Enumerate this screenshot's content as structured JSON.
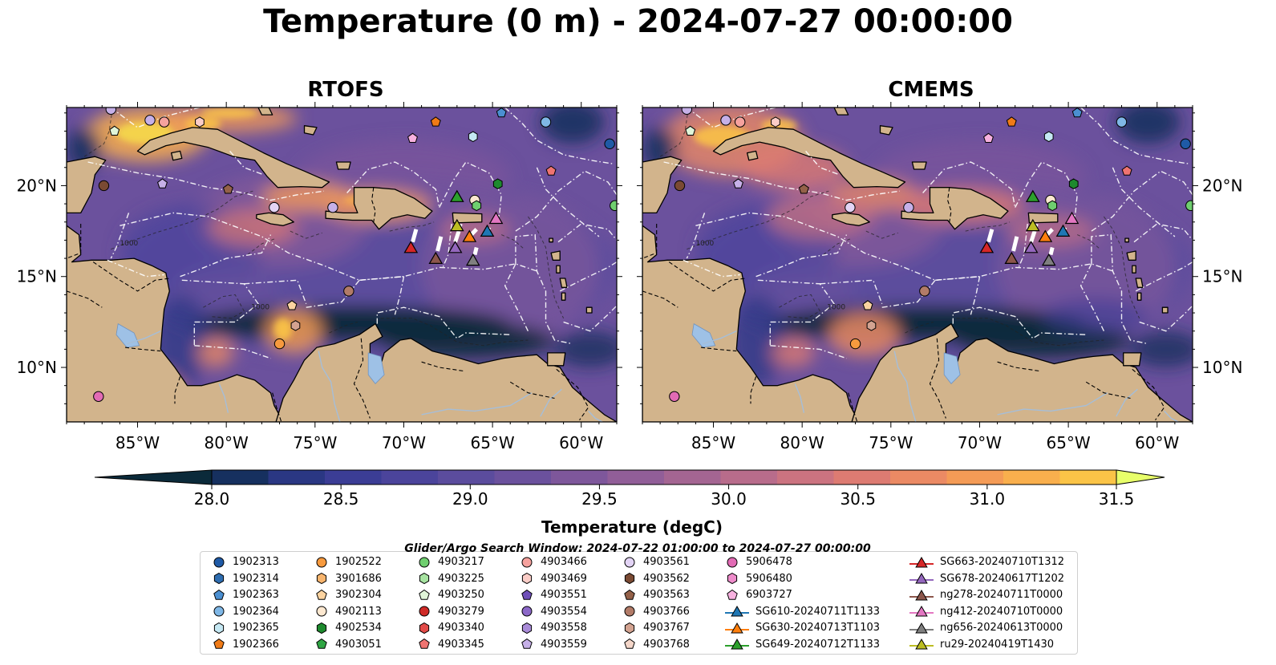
{
  "title": "Temperature (0 m) - 2024-07-27 00:00:00",
  "search_window": "Glider/Argo Search Window: 2024-07-22 01:00:00 to 2024-07-27 00:00:00",
  "chart_data": {
    "type": "heatmap",
    "panels": [
      {
        "title": "RTOFS"
      },
      {
        "title": "CMEMS"
      }
    ],
    "x_ticks": [
      "85°W",
      "80°W",
      "75°W",
      "70°W",
      "65°W",
      "60°W"
    ],
    "x_tick_values": [
      -85,
      -80,
      -75,
      -70,
      -65,
      -60
    ],
    "y_ticks": [
      "20°N",
      "15°N",
      "10°N"
    ],
    "y_tick_values": [
      20,
      15,
      10
    ],
    "xlim": [
      -89,
      -58
    ],
    "ylim": [
      7,
      24.3
    ],
    "colorbar": {
      "label": "Temperature (degC)",
      "range": [
        28.0,
        31.5
      ],
      "ticks": [
        "28.0",
        "28.5",
        "29.0",
        "29.5",
        "30.0",
        "30.5",
        "31.0",
        "31.5"
      ],
      "colors": [
        "#0b2a3a",
        "#16305f",
        "#2a3783",
        "#3b3d95",
        "#4b449b",
        "#5b4c9d",
        "#6b519d",
        "#7e579b",
        "#915e98",
        "#a46592",
        "#b86c8b",
        "#cb7380",
        "#dd7b72",
        "#eb8a64",
        "#f49b56",
        "#f9af4d",
        "#fbc447",
        "#f5d84b"
      ],
      "extend": "both"
    },
    "contour_label": "1000",
    "legend": [
      {
        "label": "1902313",
        "marker": "circle",
        "color": "#1f5aa6"
      },
      {
        "label": "1902314",
        "marker": "hexagon",
        "color": "#2e6db0"
      },
      {
        "label": "1902363",
        "marker": "pentagon",
        "color": "#4b8fd1"
      },
      {
        "label": "1902364",
        "marker": "circle",
        "color": "#7fb7e6"
      },
      {
        "label": "1902365",
        "marker": "hexagon",
        "color": "#c5e8f3"
      },
      {
        "label": "1902366",
        "marker": "pentagon",
        "color": "#f07b17"
      },
      {
        "label": "1902522",
        "marker": "circle",
        "color": "#f79a3e"
      },
      {
        "label": "3901686",
        "marker": "hexagon",
        "color": "#f8b56e"
      },
      {
        "label": "3902304",
        "marker": "pentagon",
        "color": "#fbd3a0"
      },
      {
        "label": "4902113",
        "marker": "circle",
        "color": "#fde8d0"
      },
      {
        "label": "4902534",
        "marker": "hexagon",
        "color": "#1e8a2e"
      },
      {
        "label": "4903051",
        "marker": "pentagon",
        "color": "#2fa543"
      },
      {
        "label": "4903217",
        "marker": "circle",
        "color": "#6fcf6f"
      },
      {
        "label": "4903225",
        "marker": "hexagon",
        "color": "#a7e3a1"
      },
      {
        "label": "4903250",
        "marker": "pentagon",
        "color": "#e0f5d8"
      },
      {
        "label": "4903279",
        "marker": "circle",
        "color": "#cf2a27"
      },
      {
        "label": "4903340",
        "marker": "hexagon",
        "color": "#e24b48"
      },
      {
        "label": "4903345",
        "marker": "pentagon",
        "color": "#ef7471"
      },
      {
        "label": "4903466",
        "marker": "circle",
        "color": "#f6a29e"
      },
      {
        "label": "4903469",
        "marker": "hexagon",
        "color": "#fbcdc7"
      },
      {
        "label": "4903551",
        "marker": "pentagon",
        "color": "#6f4fb8"
      },
      {
        "label": "4903554",
        "marker": "circle",
        "color": "#8c68c8"
      },
      {
        "label": "4903558",
        "marker": "hexagon",
        "color": "#a98bd8"
      },
      {
        "label": "4903559",
        "marker": "pentagon",
        "color": "#c6b0e8"
      },
      {
        "label": "4903561",
        "marker": "circle",
        "color": "#e3d4f5"
      },
      {
        "label": "4903562",
        "marker": "hexagon",
        "color": "#7a4a33"
      },
      {
        "label": "4903563",
        "marker": "pentagon",
        "color": "#946149"
      },
      {
        "label": "4903766",
        "marker": "circle",
        "color": "#b27b68"
      },
      {
        "label": "4903767",
        "marker": "hexagon",
        "color": "#d3a391"
      },
      {
        "label": "4903768",
        "marker": "pentagon",
        "color": "#f4d6c9"
      },
      {
        "label": "5906478",
        "marker": "circle",
        "color": "#e26bb5"
      },
      {
        "label": "5906480",
        "marker": "hexagon",
        "color": "#ee8ccb"
      },
      {
        "label": "6903727",
        "marker": "pentagon",
        "color": "#f7b1df"
      },
      {
        "label": "SG610-20240711T1133",
        "marker": "triangle-line",
        "color": "#1f77b4"
      },
      {
        "label": "SG630-20240713T1103",
        "marker": "triangle-line",
        "color": "#ff7f0e"
      },
      {
        "label": "SG649-20240712T1133",
        "marker": "triangle-line",
        "color": "#2ca02c"
      },
      {
        "label": "SG663-20240710T1312",
        "marker": "triangle-line",
        "color": "#d62728"
      },
      {
        "label": "SG678-20240617T1202",
        "marker": "triangle-line",
        "color": "#9467bd"
      },
      {
        "label": "ng278-20240711T0000",
        "marker": "triangle-line",
        "color": "#8c564b"
      },
      {
        "label": "ng412-20240710T0000",
        "marker": "triangle-line",
        "color": "#e377c2"
      },
      {
        "label": "ng656-20240613T0000",
        "marker": "triangle-line",
        "color": "#7f7f7f"
      },
      {
        "label": "ru29-20240419T1430",
        "marker": "triangle-line",
        "color": "#bcbd22"
      }
    ],
    "floats": [
      {
        "lon": -86.5,
        "lat": 24.2,
        "marker": "circle",
        "color": "#c6b0e8"
      },
      {
        "lon": -86.3,
        "lat": 23.0,
        "marker": "pentagon",
        "color": "#e0f5d8"
      },
      {
        "lon": -84.3,
        "lat": 23.6,
        "marker": "circle",
        "color": "#c6b0e8"
      },
      {
        "lon": -83.5,
        "lat": 23.5,
        "marker": "circle",
        "color": "#f6a29e"
      },
      {
        "lon": -81.5,
        "lat": 23.5,
        "marker": "hexagon",
        "color": "#fbcdc7"
      },
      {
        "lon": -86.9,
        "lat": 20.0,
        "marker": "circle",
        "color": "#7a4a33"
      },
      {
        "lon": -83.6,
        "lat": 20.1,
        "marker": "pentagon",
        "color": "#c6b0e8"
      },
      {
        "lon": -79.9,
        "lat": 19.8,
        "marker": "pentagon",
        "color": "#946149"
      },
      {
        "lon": -77.3,
        "lat": 18.8,
        "marker": "circle",
        "color": "#e3d4f5"
      },
      {
        "lon": -74.0,
        "lat": 18.8,
        "marker": "circle",
        "color": "#c6b0e8"
      },
      {
        "lon": -69.5,
        "lat": 22.6,
        "marker": "pentagon",
        "color": "#f7b1df"
      },
      {
        "lon": -68.2,
        "lat": 23.5,
        "marker": "pentagon",
        "color": "#f07b17"
      },
      {
        "lon": -66.1,
        "lat": 22.7,
        "marker": "hexagon",
        "color": "#c5e8f3"
      },
      {
        "lon": -64.5,
        "lat": 24.0,
        "marker": "pentagon",
        "color": "#4b8fd1"
      },
      {
        "lon": -62.0,
        "lat": 23.5,
        "marker": "circle",
        "color": "#7fb7e6"
      },
      {
        "lon": -58.4,
        "lat": 22.3,
        "marker": "circle",
        "color": "#1f5aa6"
      },
      {
        "lon": -61.7,
        "lat": 20.8,
        "marker": "pentagon",
        "color": "#ef7471"
      },
      {
        "lon": -64.7,
        "lat": 20.1,
        "marker": "hexagon",
        "color": "#1e8a2e"
      },
      {
        "lon": -66.0,
        "lat": 19.2,
        "marker": "circle",
        "color": "#fde8d0"
      },
      {
        "lon": -65.9,
        "lat": 18.9,
        "marker": "hexagon",
        "color": "#6fcf6f"
      },
      {
        "lon": -58.1,
        "lat": 18.9,
        "marker": "circle",
        "color": "#6fcf6f"
      },
      {
        "lon": -73.1,
        "lat": 14.2,
        "marker": "circle",
        "color": "#b27b68"
      },
      {
        "lon": -76.3,
        "lat": 13.4,
        "marker": "pentagon",
        "color": "#fbd3a0"
      },
      {
        "lon": -76.1,
        "lat": 12.3,
        "marker": "hexagon",
        "color": "#d3a391"
      },
      {
        "lon": -77.0,
        "lat": 11.3,
        "marker": "circle",
        "color": "#f79a3e"
      },
      {
        "lon": -87.2,
        "lat": 8.4,
        "marker": "circle",
        "color": "#e26bb5"
      }
    ],
    "gliders": [
      {
        "label": "SG663-20240710T1312",
        "lon": -69.6,
        "lat": 16.6,
        "color": "#d62728",
        "track": [
          [
            -69.3,
            17.6
          ],
          [
            -69.5,
            16.9
          ]
        ]
      },
      {
        "label": "ng278-20240711T0000",
        "lon": -68.2,
        "lat": 16.0,
        "color": "#8c564b",
        "track": [
          [
            -67.9,
            17.2
          ],
          [
            -68.1,
            16.4
          ]
        ]
      },
      {
        "label": "SG678-20240617T1202",
        "lon": -67.1,
        "lat": 16.6,
        "color": "#9467bd",
        "track": [
          [
            -66.9,
            17.5
          ],
          [
            -67.1,
            16.9
          ]
        ]
      },
      {
        "label": "ng656-20240613T0000",
        "lon": -66.1,
        "lat": 15.9,
        "color": "#7f7f7f",
        "track": [
          [
            -65.9,
            16.6
          ],
          [
            -66.0,
            16.2
          ]
        ]
      },
      {
        "label": "ru29-20240419T1430",
        "lon": -67.0,
        "lat": 17.8,
        "color": "#bcbd22",
        "track": [
          [
            -66.8,
            17.9
          ],
          [
            -66.9,
            17.6
          ]
        ]
      },
      {
        "label": "SG630-20240713T1103",
        "lon": -66.3,
        "lat": 17.2,
        "color": "#ff7f0e",
        "track": [
          [
            -65.9,
            17.6
          ],
          [
            -66.2,
            17.3
          ]
        ]
      },
      {
        "label": "SG610-20240711T1133",
        "lon": -65.3,
        "lat": 17.5,
        "color": "#1f77b4",
        "track": [
          [
            -65.2,
            17.7
          ],
          [
            -65.3,
            17.4
          ]
        ]
      },
      {
        "label": "SG649-20240712T1133",
        "lon": -67.0,
        "lat": 19.4,
        "color": "#2ca02c",
        "track": [
          [
            -66.9,
            19.2
          ],
          [
            -67.0,
            19.5
          ]
        ]
      },
      {
        "label": "ng412-20240710T0000",
        "lon": -64.8,
        "lat": 18.2,
        "color": "#e377c2",
        "track": [
          [
            -64.7,
            18.4
          ],
          [
            -64.8,
            18.1
          ]
        ]
      }
    ]
  }
}
